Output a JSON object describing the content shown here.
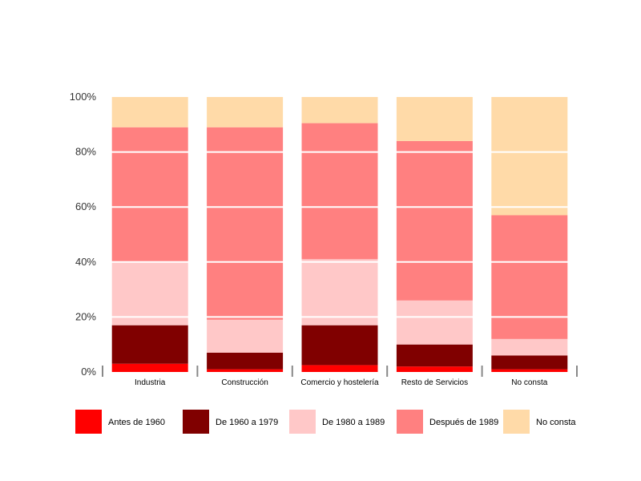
{
  "chart_data": {
    "type": "bar",
    "stacked": true,
    "percent": true,
    "categories": [
      "Industria",
      "Construcción",
      "Comercio y hostelería",
      "Resto de Servicios",
      "No consta"
    ],
    "series": [
      {
        "name": "Antes de 1960",
        "color": "#ff0000",
        "values": [
          3,
          1,
          2.5,
          2,
          1
        ]
      },
      {
        "name": "De 1960 a 1979",
        "color": "#800000",
        "values": [
          14,
          6,
          14.5,
          8,
          5
        ]
      },
      {
        "name": "De 1980 a 1989",
        "color": "#ffc8c8",
        "values": [
          23,
          12,
          24,
          16,
          6
        ]
      },
      {
        "name": "Después de 1989",
        "color": "#ff8080",
        "values": [
          49,
          70,
          49.5,
          58,
          45
        ]
      },
      {
        "name": "No consta",
        "color": "#ffdaa8",
        "values": [
          11,
          11,
          9.5,
          16,
          43
        ]
      }
    ],
    "ylim": [
      0,
      100
    ],
    "yticks": [
      "0%",
      "20%",
      "40%",
      "60%",
      "80%",
      "100%"
    ],
    "grid": true,
    "legend_position": "bottom"
  }
}
